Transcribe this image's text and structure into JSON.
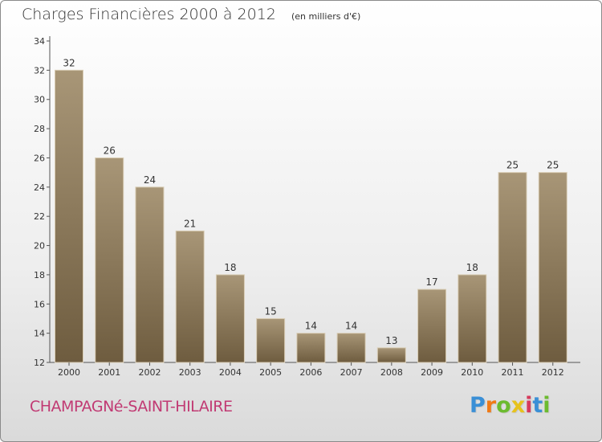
{
  "chart_data": {
    "type": "bar",
    "title": "Charges Financières 2000 à 2012",
    "subtitle": "(en milliers d'€)",
    "categories": [
      "2000",
      "2001",
      "2002",
      "2003",
      "2004",
      "2005",
      "2006",
      "2007",
      "2008",
      "2009",
      "2010",
      "2011",
      "2012"
    ],
    "values": [
      32,
      26,
      24,
      21,
      18,
      15,
      14,
      14,
      13,
      17,
      18,
      25,
      25
    ],
    "value_labels": [
      "32",
      "26",
      "24",
      "21",
      "18",
      "15",
      "14",
      "14",
      "13",
      "17",
      "18",
      "25",
      "25"
    ],
    "ylim": [
      12,
      34
    ],
    "yticks": [
      12,
      14,
      16,
      18,
      20,
      22,
      24,
      26,
      28,
      30,
      32,
      34
    ],
    "ytick_labels": [
      "12",
      "14",
      "16",
      "18",
      "20",
      "22",
      "24",
      "26",
      "28",
      "30",
      "32",
      "34"
    ],
    "xlabel": "",
    "ylabel": "",
    "grid": false,
    "bar_color_light": "#a89677",
    "bar_color_dark": "#6e5c3f"
  },
  "footer": {
    "commune": "CHAMPAGNé-SAINT-HILAIRE",
    "commune_color": "#c13a73"
  },
  "logo": {
    "text": "Proxiti",
    "letters": [
      "P",
      "r",
      "o",
      "x",
      "i",
      "t",
      "i"
    ],
    "colors": [
      "#3a8fd6",
      "#f07a16",
      "#6cbb2f",
      "#e7c21c",
      "#d63a5c",
      "#3a8fd6",
      "#6cbb2f"
    ]
  }
}
